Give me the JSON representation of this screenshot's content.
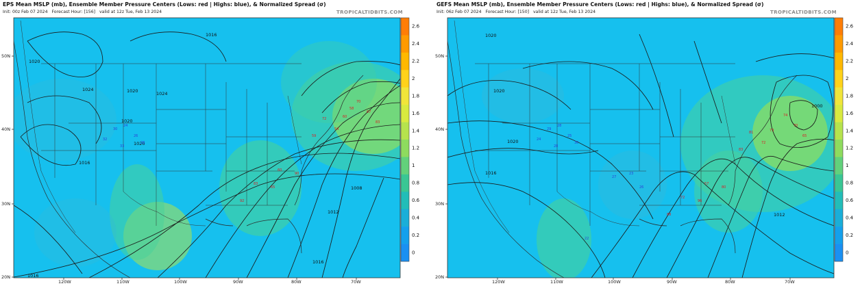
{
  "colors": {
    "ocean": "#16c0ee",
    "land": "#19c4d6",
    "spread_low": "#35b9d6",
    "spread_mid": "#48d29a",
    "spread_high": "#bde63c",
    "low_marker": "#d81f26",
    "high_marker": "#2d3fd6",
    "isobar": "#1a1a1a",
    "border": "#333333"
  },
  "colorbar": {
    "ticks": [
      "2.6",
      "2.4",
      "2.2",
      "2",
      "1.8",
      "1.6",
      "1.4",
      "1.2",
      "1",
      "0.8",
      "0.6",
      "0.4",
      "0.2",
      "0"
    ],
    "colors": [
      "#ff7d06",
      "#ff9a00",
      "#ffb800",
      "#ffd21a",
      "#f1e53a",
      "#d9ea3f",
      "#b6e34d",
      "#8edb5e",
      "#62d17b",
      "#39c694",
      "#22bdb8",
      "#1aaed8",
      "#14a0ec",
      "#1a90f2"
    ]
  },
  "panels": [
    {
      "title": "EPS Mean MSLP (mb), Ensemble Member Pressure Centers (Lows: red | Highs: blue), & Normalized Spread (σ)",
      "init": "Init: 00z Feb 07 2024",
      "forecast_hour": "Forecast Hour: [156]",
      "valid": "valid at 12z Tue, Feb 13 2024",
      "brand": "TROPICALTIDBITS.COM",
      "lat_labels": [
        "50N",
        "40N",
        "30N",
        "20N"
      ],
      "lon_labels": [
        "120W",
        "110W",
        "100W",
        "90W",
        "80W",
        "70W"
      ],
      "isobar_labels": [
        "1016",
        "1020",
        "1024",
        "1020",
        "1024",
        "1020",
        "1020",
        "1016",
        "1008",
        "1012",
        "1016",
        "1016"
      ],
      "low_center_values": [
        "70",
        "67",
        "60",
        "83",
        "54",
        "72",
        "59",
        "60",
        "90",
        "83",
        "65",
        "92",
        "58"
      ],
      "high_center_values": [
        "24",
        "26",
        "30",
        "28",
        "33",
        "32"
      ]
    },
    {
      "title": "GEFS Mean MSLP (mb), Ensemble Member Pressure Centers (Lows: red | Highs: blue), & Normalized Spread (σ)",
      "init": "Init: 06z Feb 07 2024",
      "forecast_hour": "Forecast Hour: [150]",
      "valid": "valid at 12z Tue, Feb 13 2024",
      "brand": "TROPICALTIDBITS.COM",
      "lat_labels": [
        "50N",
        "40N",
        "30N",
        "20N"
      ],
      "lon_labels": [
        "120W",
        "110W",
        "100W",
        "90W",
        "80W",
        "70W"
      ],
      "isobar_labels": [
        "1020",
        "1020",
        "1020",
        "1016",
        "1000",
        "1012"
      ],
      "low_center_values": [
        "74",
        "70",
        "73",
        "65",
        "72",
        "81",
        "83",
        "57",
        "80",
        "72",
        "96",
        "88"
      ],
      "high_center_values": [
        "28",
        "25",
        "29",
        "30",
        "28",
        "24",
        "27",
        "23",
        "26",
        "22"
      ]
    }
  ]
}
